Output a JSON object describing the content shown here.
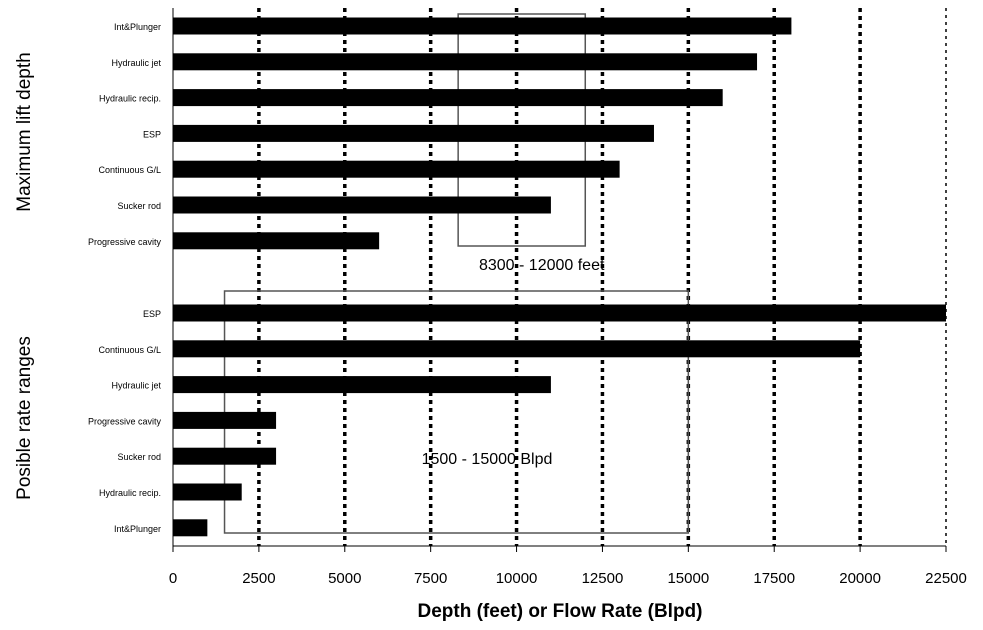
{
  "chart_data": {
    "type": "bar",
    "orientation": "horizontal",
    "xlabel": "Depth (feet) or Flow Rate (Blpd)",
    "xlim": [
      0,
      22500
    ],
    "xticks": [
      0,
      2500,
      5000,
      7500,
      10000,
      12500,
      15000,
      17500,
      20000,
      22500
    ],
    "grid": "vertical dotted",
    "groups": [
      {
        "ylabel": "Maximum lift depth",
        "categories": [
          "Int&Plunger",
          "Hydraulic jet",
          "Hydraulic recip.",
          "ESP",
          "Continuous G/L",
          "Sucker rod",
          "Progressive cavity"
        ],
        "values": [
          18000,
          17000,
          16000,
          14000,
          13000,
          11000,
          6000
        ],
        "annotation": {
          "text": "8300  -  12000  feet",
          "from": 8300,
          "to": 12000
        }
      },
      {
        "ylabel": "Posible rate ranges",
        "categories": [
          "ESP",
          "Continuous G/L",
          "Hydraulic jet",
          "Progressive cavity",
          "Sucker rod",
          "Hydraulic recip.",
          "Int&Plunger"
        ],
        "values": [
          22500,
          20000,
          11000,
          3000,
          3000,
          2000,
          1000
        ],
        "annotation": {
          "text": "1500 - 15000  Blpd",
          "from": 1500,
          "to": 15000
        }
      }
    ],
    "colors": {
      "bar": "#000000",
      "grid": "#000000",
      "box": "#555555"
    }
  }
}
